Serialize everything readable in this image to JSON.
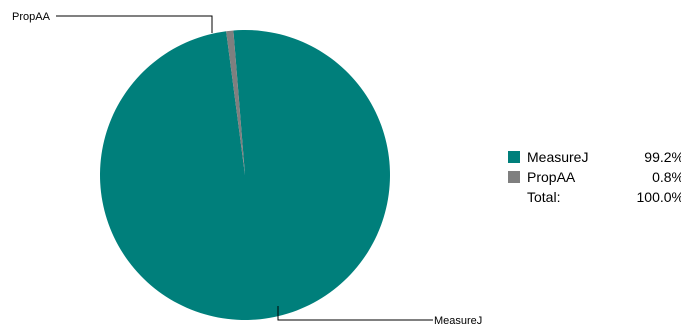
{
  "chart_data": {
    "type": "pie",
    "categories": [
      "MeasureJ",
      "PropAA"
    ],
    "values": [
      99.2,
      0.8
    ],
    "value_labels": [
      "99.2%",
      "0.8%"
    ],
    "colors": [
      "#007f7b",
      "#7f7f7f"
    ],
    "legend": {
      "placement": "right",
      "total_label": "Total:",
      "total_value": "100.0%"
    }
  }
}
